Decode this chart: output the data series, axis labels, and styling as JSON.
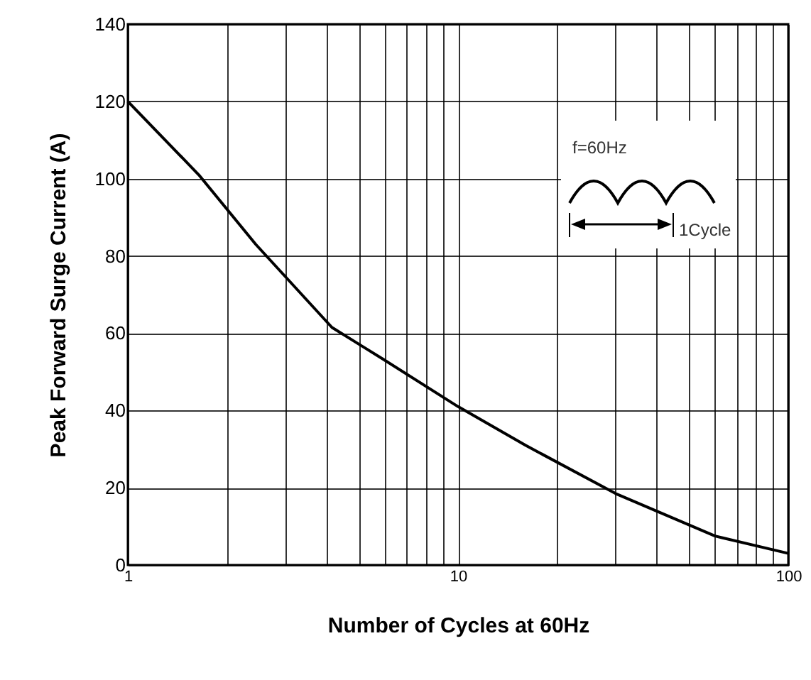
{
  "chart_data": {
    "type": "line",
    "xlabel": "Number of Cycles at 60Hz",
    "ylabel": "Peak Forward Surge Current (A)",
    "x": [
      1,
      1.64,
      2.44,
      4.15,
      6,
      10,
      16,
      30,
      60,
      100
    ],
    "series": [
      {
        "color": "#000000",
        "values": [
          120,
          101,
          83,
          61.5,
          53,
          41,
          31,
          18.5,
          7.5,
          3
        ]
      }
    ],
    "log": "x",
    "xlim": [
      1,
      100
    ],
    "ylim": [
      0,
      140
    ],
    "xticks": [
      1,
      {
        "value": 2,
        "label": null
      },
      {
        "value": 3,
        "label": null
      },
      {
        "value": 4,
        "label": null
      },
      {
        "value": 5,
        "label": null
      },
      {
        "value": 6,
        "label": null
      },
      {
        "value": 7,
        "label": null
      },
      {
        "value": 8,
        "label": null
      },
      {
        "value": 9,
        "label": null
      },
      10,
      {
        "value": 20,
        "label": null
      },
      {
        "value": 30,
        "label": null
      },
      {
        "value": 40,
        "label": null
      },
      {
        "value": 50,
        "label": null
      },
      {
        "value": 60,
        "label": null
      },
      {
        "value": 70,
        "label": null
      },
      {
        "value": 80,
        "label": null
      },
      {
        "value": 90,
        "label": null
      },
      100
    ],
    "yticks": [
      0,
      20,
      40,
      60,
      80,
      100,
      120,
      140
    ],
    "grid": true,
    "marker": "none",
    "line_style": "solid",
    "annotations": [
      "f=60Hz",
      "1Cycle"
    ]
  }
}
